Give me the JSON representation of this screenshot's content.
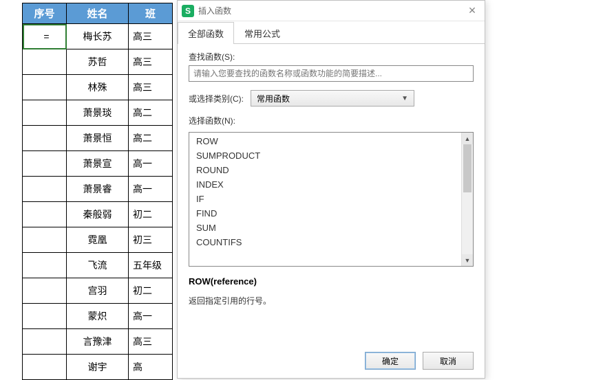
{
  "table": {
    "header_bg": "#5b9bd5",
    "header_fg": "#ffffff",
    "border_color": "#000000",
    "columns": [
      "序号",
      "姓名",
      "班级"
    ],
    "col3_visible_prefix": "班",
    "active_cell_value": "=",
    "rows": [
      {
        "a": "=",
        "b": "梅长苏",
        "c": "高三"
      },
      {
        "a": "",
        "b": "苏哲",
        "c": "高三"
      },
      {
        "a": "",
        "b": "林殊",
        "c": "高三"
      },
      {
        "a": "",
        "b": "萧景琰",
        "c": "高二"
      },
      {
        "a": "",
        "b": "萧景恒",
        "c": "高二"
      },
      {
        "a": "",
        "b": "萧景宣",
        "c": "高一"
      },
      {
        "a": "",
        "b": "萧景睿",
        "c": "高一"
      },
      {
        "a": "",
        "b": "秦般弱",
        "c": "初二"
      },
      {
        "a": "",
        "b": "霓凰",
        "c": "初三"
      },
      {
        "a": "",
        "b": "飞流",
        "c": "五年级"
      },
      {
        "a": "",
        "b": "宫羽",
        "c": "初二"
      },
      {
        "a": "",
        "b": "蒙炽",
        "c": "高一"
      },
      {
        "a": "",
        "b": "言豫津",
        "c": "高三"
      },
      {
        "a": "",
        "b": "谢宇",
        "c": "高"
      }
    ]
  },
  "dialog": {
    "app_icon_letter": "S",
    "app_icon_bg": "#1aad61",
    "title": "插入函数",
    "tabs": {
      "all": "全部函数",
      "common": "常用公式"
    },
    "search_label": "查找函数(S):",
    "search_placeholder": "请输入您要查找的函数名称或函数功能的简要描述...",
    "category_label": "或选择类别(C):",
    "category_value": "常用函数",
    "select_label": "选择函数(N):",
    "function_list": [
      "ROW",
      "SUMPRODUCT",
      "ROUND",
      "INDEX",
      "IF",
      "FIND",
      "SUM",
      "COUNTIFS"
    ],
    "description": {
      "name": "ROW(reference)",
      "text": "返回指定引用的行号。"
    },
    "buttons": {
      "ok": "确定",
      "cancel": "取消"
    }
  }
}
